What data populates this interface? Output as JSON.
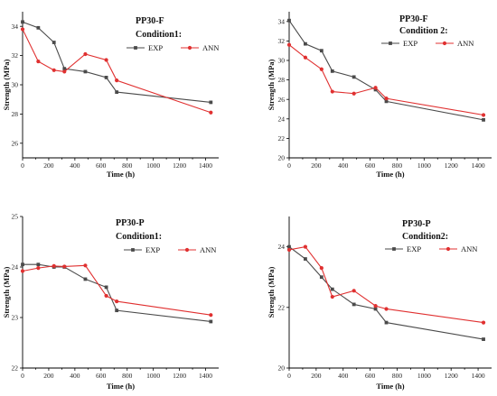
{
  "chart_data": [
    {
      "type": "line",
      "title": "PP30-F",
      "subtitle": "Condition1:",
      "xlabel": "Time (h)",
      "ylabel": "Strength (MPa)",
      "xlim": [
        0,
        1500
      ],
      "ylim": [
        25,
        35
      ],
      "xticks": [
        "0",
        "200",
        "400",
        "600",
        "800",
        "1000",
        "1200",
        "1400"
      ],
      "yticks": [
        "26",
        "28",
        "30",
        "32",
        "34"
      ],
      "legend_position": "top-right",
      "series": [
        {
          "name": "EXP",
          "color": "#4a4a4a",
          "x": [
            0,
            120,
            240,
            320,
            480,
            640,
            720,
            1440
          ],
          "y": [
            34.3,
            33.9,
            32.9,
            31.1,
            30.9,
            30.5,
            29.5,
            28.8
          ]
        },
        {
          "name": "ANN",
          "color": "#e03030",
          "x": [
            0,
            120,
            240,
            320,
            480,
            640,
            720,
            1440
          ],
          "y": [
            33.8,
            31.6,
            31.0,
            30.9,
            32.1,
            31.7,
            30.3,
            28.1
          ]
        }
      ]
    },
    {
      "type": "line",
      "title": "PP30-F",
      "subtitle": "Condition 2:",
      "xlabel": "Time (h)",
      "ylabel": "Strength (MPa)",
      "xlim": [
        0,
        1500
      ],
      "ylim": [
        20,
        35
      ],
      "xticks": [
        "0",
        "200",
        "400",
        "600",
        "800",
        "1000",
        "1200",
        "1400"
      ],
      "yticks": [
        "20",
        "22",
        "24",
        "26",
        "28",
        "30",
        "32",
        "34"
      ],
      "legend_position": "top-right",
      "series": [
        {
          "name": "EXP",
          "color": "#4a4a4a",
          "x": [
            0,
            120,
            240,
            320,
            480,
            640,
            720,
            1440
          ],
          "y": [
            34.1,
            31.7,
            31.0,
            28.9,
            28.3,
            27.0,
            25.8,
            23.9
          ]
        },
        {
          "name": "ANN",
          "color": "#e03030",
          "x": [
            0,
            120,
            240,
            320,
            480,
            640,
            720,
            1440
          ],
          "y": [
            31.6,
            30.3,
            29.1,
            26.8,
            26.6,
            27.2,
            26.1,
            24.4
          ]
        }
      ]
    },
    {
      "type": "line",
      "title": "PP30-P",
      "subtitle": "Condition1:",
      "xlabel": "Time (h)",
      "ylabel": "Strength (MPa)",
      "xlim": [
        0,
        1500
      ],
      "ylim": [
        22,
        25
      ],
      "xticks": [
        "0",
        "200",
        "400",
        "600",
        "800",
        "1000",
        "1200",
        "1400"
      ],
      "yticks": [
        "22",
        "23",
        "24",
        "25"
      ],
      "legend_position": "top-right",
      "series": [
        {
          "name": "EXP",
          "color": "#4a4a4a",
          "x": [
            0,
            120,
            240,
            320,
            480,
            640,
            720,
            1440
          ],
          "y": [
            24.05,
            24.05,
            24.0,
            24.0,
            23.76,
            23.6,
            23.14,
            22.92
          ]
        },
        {
          "name": "ANN",
          "color": "#e03030",
          "x": [
            0,
            120,
            240,
            320,
            480,
            640,
            720,
            1440
          ],
          "y": [
            23.92,
            23.98,
            24.02,
            24.01,
            24.03,
            23.43,
            23.32,
            23.05
          ]
        }
      ]
    },
    {
      "type": "line",
      "title": "PP30-P",
      "subtitle": "Condition2:",
      "xlabel": "Time (h)",
      "ylabel": "Strength (MPa)",
      "xlim": [
        0,
        1500
      ],
      "ylim": [
        20,
        25
      ],
      "xticks": [
        "0",
        "200",
        "400",
        "600",
        "800",
        "1000",
        "1200",
        "1400"
      ],
      "yticks": [
        "20",
        "22",
        "24"
      ],
      "legend_position": "top-right",
      "series": [
        {
          "name": "EXP",
          "color": "#4a4a4a",
          "x": [
            0,
            120,
            240,
            320,
            480,
            640,
            720,
            1440
          ],
          "y": [
            24.0,
            23.6,
            23.0,
            22.6,
            22.1,
            21.95,
            21.5,
            20.95
          ]
        },
        {
          "name": "ANN",
          "color": "#e03030",
          "x": [
            0,
            120,
            240,
            320,
            480,
            640,
            720,
            1440
          ],
          "y": [
            23.9,
            24.0,
            23.3,
            22.35,
            22.55,
            22.05,
            21.95,
            21.5
          ]
        }
      ]
    }
  ]
}
